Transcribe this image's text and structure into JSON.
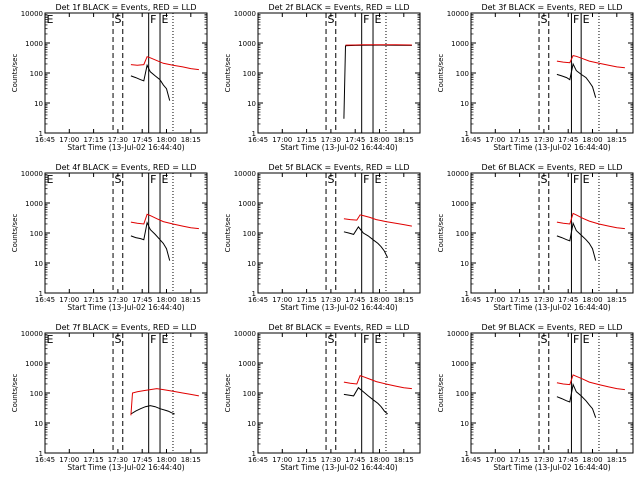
{
  "figure": {
    "x_labels": [
      "16:45",
      "17:00",
      "17:15",
      "17:30",
      "17:45",
      "18:00",
      "18:15"
    ],
    "x_title": "Start Time (13-Jul-02 16:44:40)",
    "y_title": "Counts/sec",
    "y_tick_labels": [
      "1",
      "10",
      "100",
      "1000",
      "10000"
    ],
    "colors": {
      "events": "#000000",
      "lld": "#e00000",
      "axes": "#000000"
    }
  },
  "chart_data": [
    {
      "type": "line",
      "title": "Det 1f BLACK = Events, RED = LLD",
      "xlabel": "Start Time (13-Jul-02 16:44:40)",
      "ylabel": "Counts/sec",
      "ylim": [
        1,
        10000
      ],
      "yscale": "log",
      "xlim": [
        "16:45",
        "18:25"
      ],
      "marker_lines": [
        {
          "label": "E",
          "x": "16:45",
          "style": "dotted"
        },
        {
          "label": "S",
          "x": "17:27",
          "style": "dashed"
        },
        {
          "label": "",
          "x": "17:33",
          "style": "dashed"
        },
        {
          "label": "F",
          "x": "17:49",
          "style": "solid"
        },
        {
          "label": "E",
          "x": "17:56",
          "style": "solid"
        },
        {
          "label": "",
          "x": "18:04",
          "style": "dotted"
        }
      ],
      "series": [
        {
          "name": "Events",
          "color": "#000000",
          "x": [
            "17:38",
            "17:41",
            "17:44",
            "17:46",
            "17:48",
            "17:50",
            "17:53",
            "17:56",
            "17:58",
            "18:00",
            "18:02"
          ],
          "y": [
            80,
            70,
            60,
            55,
            180,
            110,
            80,
            60,
            40,
            30,
            12
          ]
        },
        {
          "name": "LLD",
          "color": "#e00000",
          "x": [
            "17:38",
            "17:42",
            "17:46",
            "17:48",
            "17:50",
            "17:54",
            "17:58",
            "18:04",
            "18:10",
            "18:15",
            "18:20"
          ],
          "y": [
            190,
            180,
            190,
            350,
            320,
            260,
            210,
            180,
            160,
            140,
            130
          ]
        }
      ]
    },
    {
      "type": "line",
      "title": "Det 2f BLACK = Events, RED = LLD",
      "xlabel": "Start Time (13-Jul-02 16:44:40)",
      "ylabel": "Counts/sec",
      "ylim": [
        1,
        10000
      ],
      "yscale": "log",
      "xlim": [
        "16:45",
        "18:25"
      ],
      "marker_lines": [
        {
          "label": "S",
          "x": "17:27",
          "style": "dashed"
        },
        {
          "label": "",
          "x": "17:33",
          "style": "dashed"
        },
        {
          "label": "F",
          "x": "17:49",
          "style": "solid"
        },
        {
          "label": "E",
          "x": "17:56",
          "style": "solid"
        },
        {
          "label": "",
          "x": "18:04",
          "style": "dotted"
        }
      ],
      "series": [
        {
          "name": "Events",
          "color": "#000000",
          "x": [
            "17:38",
            "17:39",
            "17:40",
            "17:45",
            "17:50",
            "18:00",
            "18:10",
            "18:20"
          ],
          "y": [
            3,
            800,
            820,
            830,
            840,
            850,
            840,
            830
          ]
        },
        {
          "name": "LLD",
          "color": "#e00000",
          "x": [
            "17:39",
            "17:45",
            "17:50",
            "17:55",
            "18:00",
            "18:10",
            "18:20"
          ],
          "y": [
            850,
            860,
            870,
            880,
            880,
            870,
            860
          ]
        }
      ]
    },
    {
      "type": "line",
      "title": "Det 3f BLACK = Events, RED = LLD",
      "xlabel": "Start Time (13-Jul-02 16:44:40)",
      "ylabel": "Counts/sec",
      "ylim": [
        1,
        10000
      ],
      "yscale": "log",
      "xlim": [
        "16:45",
        "18:25"
      ],
      "marker_lines": [
        {
          "label": "S",
          "x": "17:27",
          "style": "dashed"
        },
        {
          "label": "",
          "x": "17:33",
          "style": "dashed"
        },
        {
          "label": "F",
          "x": "17:47",
          "style": "solid"
        },
        {
          "label": "E",
          "x": "17:53",
          "style": "solid"
        },
        {
          "label": "",
          "x": "18:04",
          "style": "dotted"
        }
      ],
      "series": [
        {
          "name": "Events",
          "color": "#000000",
          "x": [
            "17:38",
            "17:41",
            "17:44",
            "17:46",
            "17:48",
            "17:50",
            "17:53",
            "17:56",
            "17:58",
            "18:00",
            "18:02"
          ],
          "y": [
            90,
            80,
            70,
            60,
            200,
            120,
            90,
            70,
            50,
            35,
            15
          ]
        },
        {
          "name": "LLD",
          "color": "#e00000",
          "x": [
            "17:38",
            "17:42",
            "17:46",
            "17:48",
            "17:50",
            "17:54",
            "17:58",
            "18:04",
            "18:10",
            "18:15",
            "18:20"
          ],
          "y": [
            250,
            230,
            220,
            380,
            360,
            300,
            250,
            210,
            180,
            160,
            150
          ]
        }
      ]
    },
    {
      "type": "line",
      "title": "Det 4f BLACK = Events, RED = LLD",
      "xlabel": "Start Time (13-Jul-02 16:44:40)",
      "ylabel": "Counts/sec",
      "ylim": [
        1,
        10000
      ],
      "yscale": "log",
      "xlim": [
        "16:45",
        "18:25"
      ],
      "marker_lines": [
        {
          "label": "E",
          "x": "16:45",
          "style": "dotted"
        },
        {
          "label": "S",
          "x": "17:27",
          "style": "dashed"
        },
        {
          "label": "",
          "x": "17:33",
          "style": "dashed"
        },
        {
          "label": "F",
          "x": "17:49",
          "style": "solid"
        },
        {
          "label": "E",
          "x": "17:56",
          "style": "solid"
        },
        {
          "label": "",
          "x": "18:04",
          "style": "dotted"
        }
      ],
      "series": [
        {
          "name": "Events",
          "color": "#000000",
          "x": [
            "17:38",
            "17:41",
            "17:44",
            "17:46",
            "17:48",
            "17:50",
            "17:53",
            "17:56",
            "17:58",
            "18:00",
            "18:02"
          ],
          "y": [
            80,
            70,
            65,
            60,
            220,
            130,
            90,
            60,
            45,
            30,
            12
          ]
        },
        {
          "name": "LLD",
          "color": "#e00000",
          "x": [
            "17:38",
            "17:42",
            "17:46",
            "17:48",
            "17:50",
            "17:54",
            "17:58",
            "18:04",
            "18:10",
            "18:15",
            "18:20"
          ],
          "y": [
            230,
            210,
            200,
            420,
            380,
            300,
            240,
            200,
            170,
            150,
            140
          ]
        }
      ]
    },
    {
      "type": "line",
      "title": "Det 5f BLACK = Events, RED = LLD",
      "xlabel": "Start Time (13-Jul-02 16:44:40)",
      "ylabel": "Counts/sec",
      "ylim": [
        1,
        10000
      ],
      "yscale": "log",
      "xlim": [
        "16:45",
        "18:25"
      ],
      "marker_lines": [
        {
          "label": "S",
          "x": "17:27",
          "style": "dashed"
        },
        {
          "label": "",
          "x": "17:33",
          "style": "dashed"
        },
        {
          "label": "F",
          "x": "17:49",
          "style": "solid"
        },
        {
          "label": "E",
          "x": "17:56",
          "style": "solid"
        },
        {
          "label": "",
          "x": "18:04",
          "style": "dotted"
        }
      ],
      "series": [
        {
          "name": "Events",
          "color": "#000000",
          "x": [
            "17:38",
            "17:41",
            "17:44",
            "17:47",
            "17:50",
            "17:53",
            "17:56",
            "17:59",
            "18:01",
            "18:03",
            "18:05"
          ],
          "y": [
            110,
            100,
            90,
            160,
            100,
            80,
            60,
            45,
            35,
            25,
            15
          ]
        },
        {
          "name": "LLD",
          "color": "#e00000",
          "x": [
            "17:38",
            "17:42",
            "17:46",
            "17:48",
            "17:50",
            "17:54",
            "17:58",
            "18:04",
            "18:10",
            "18:15",
            "18:20"
          ],
          "y": [
            300,
            280,
            270,
            400,
            380,
            330,
            280,
            240,
            210,
            190,
            170
          ]
        }
      ]
    },
    {
      "type": "line",
      "title": "Det 6f BLACK = Events, RED = LLD",
      "xlabel": "Start Time (13-Jul-02 16:44:40)",
      "ylabel": "Counts/sec",
      "ylim": [
        1,
        10000
      ],
      "yscale": "log",
      "xlim": [
        "16:45",
        "18:25"
      ],
      "marker_lines": [
        {
          "label": "S",
          "x": "17:27",
          "style": "dashed"
        },
        {
          "label": "",
          "x": "17:33",
          "style": "dashed"
        },
        {
          "label": "F",
          "x": "17:47",
          "style": "solid"
        },
        {
          "label": "E",
          "x": "17:53",
          "style": "solid"
        },
        {
          "label": "",
          "x": "18:04",
          "style": "dotted"
        }
      ],
      "series": [
        {
          "name": "Events",
          "color": "#000000",
          "x": [
            "17:38",
            "17:41",
            "17:44",
            "17:46",
            "17:48",
            "17:50",
            "17:53",
            "17:56",
            "17:58",
            "18:00",
            "18:02"
          ],
          "y": [
            80,
            70,
            60,
            55,
            210,
            120,
            85,
            60,
            45,
            30,
            12
          ]
        },
        {
          "name": "LLD",
          "color": "#e00000",
          "x": [
            "17:38",
            "17:42",
            "17:46",
            "17:48",
            "17:50",
            "17:54",
            "17:58",
            "18:04",
            "18:10",
            "18:15",
            "18:20"
          ],
          "y": [
            230,
            210,
            200,
            450,
            400,
            310,
            250,
            200,
            170,
            150,
            140
          ]
        }
      ]
    },
    {
      "type": "line",
      "title": "Det 7f BLACK = Events, RED = LLD",
      "xlabel": "Start Time (13-Jul-02 16:44:40)",
      "ylabel": "Counts/sec",
      "ylim": [
        1,
        10000
      ],
      "yscale": "log",
      "xlim": [
        "16:45",
        "18:25"
      ],
      "marker_lines": [
        {
          "label": "E",
          "x": "16:45",
          "style": "dotted"
        },
        {
          "label": "S",
          "x": "17:27",
          "style": "dashed"
        },
        {
          "label": "",
          "x": "17:33",
          "style": "dashed"
        },
        {
          "label": "F",
          "x": "17:49",
          "style": "solid"
        },
        {
          "label": "E",
          "x": "17:56",
          "style": "solid"
        },
        {
          "label": "",
          "x": "18:04",
          "style": "dotted"
        }
      ],
      "series": [
        {
          "name": "Events",
          "color": "#000000",
          "x": [
            "17:38",
            "17:41",
            "17:44",
            "17:47",
            "17:50",
            "17:53",
            "17:56",
            "17:59",
            "18:01",
            "18:03",
            "18:05"
          ],
          "y": [
            20,
            25,
            30,
            35,
            38,
            35,
            30,
            27,
            25,
            22,
            20
          ]
        },
        {
          "name": "LLD",
          "color": "#e00000",
          "x": [
            "17:38",
            "17:39",
            "17:42",
            "17:46",
            "17:50",
            "17:54",
            "17:58",
            "18:04",
            "18:10",
            "18:15",
            "18:20"
          ],
          "y": [
            18,
            100,
            110,
            120,
            130,
            140,
            130,
            115,
            100,
            90,
            80
          ]
        }
      ]
    },
    {
      "type": "line",
      "title": "Det 8f BLACK = Events, RED = LLD",
      "xlabel": "Start Time (13-Jul-02 16:44:40)",
      "ylabel": "Counts/sec",
      "ylim": [
        1,
        10000
      ],
      "yscale": "log",
      "xlim": [
        "16:45",
        "18:25"
      ],
      "marker_lines": [
        {
          "label": "S",
          "x": "17:27",
          "style": "dashed"
        },
        {
          "label": "",
          "x": "17:33",
          "style": "dashed"
        },
        {
          "label": "F",
          "x": "17:49",
          "style": "solid"
        },
        {
          "label": "E",
          "x": "17:56",
          "style": "solid"
        },
        {
          "label": "",
          "x": "18:04",
          "style": "dotted"
        }
      ],
      "series": [
        {
          "name": "Events",
          "color": "#000000",
          "x": [
            "17:38",
            "17:41",
            "17:44",
            "17:47",
            "17:50",
            "17:53",
            "17:56",
            "17:59",
            "18:01",
            "18:03",
            "18:05"
          ],
          "y": [
            90,
            85,
            80,
            150,
            110,
            80,
            60,
            45,
            35,
            25,
            20
          ]
        },
        {
          "name": "LLD",
          "color": "#e00000",
          "x": [
            "17:38",
            "17:42",
            "17:46",
            "17:48",
            "17:50",
            "17:54",
            "17:58",
            "18:04",
            "18:10",
            "18:15",
            "18:20"
          ],
          "y": [
            230,
            210,
            200,
            380,
            350,
            290,
            240,
            200,
            170,
            150,
            140
          ]
        }
      ]
    },
    {
      "type": "line",
      "title": "Det 9f BLACK = Events, RED = LLD",
      "xlabel": "Start Time (13-Jul-02 16:44:40)",
      "ylabel": "Counts/sec",
      "ylim": [
        1,
        10000
      ],
      "yscale": "log",
      "xlim": [
        "16:45",
        "18:25"
      ],
      "marker_lines": [
        {
          "label": "S",
          "x": "17:27",
          "style": "dashed"
        },
        {
          "label": "",
          "x": "17:33",
          "style": "dashed"
        },
        {
          "label": "F",
          "x": "17:47",
          "style": "solid"
        },
        {
          "label": "E",
          "x": "17:53",
          "style": "solid"
        },
        {
          "label": "",
          "x": "18:04",
          "style": "dotted"
        }
      ],
      "series": [
        {
          "name": "Events",
          "color": "#000000",
          "x": [
            "17:38",
            "17:41",
            "17:44",
            "17:46",
            "17:48",
            "17:50",
            "17:53",
            "17:56",
            "17:58",
            "18:00",
            "18:02"
          ],
          "y": [
            75,
            65,
            55,
            50,
            190,
            110,
            80,
            55,
            40,
            30,
            15
          ]
        },
        {
          "name": "LLD",
          "color": "#e00000",
          "x": [
            "17:38",
            "17:42",
            "17:46",
            "17:48",
            "17:50",
            "17:54",
            "17:58",
            "18:04",
            "18:10",
            "18:15",
            "18:20"
          ],
          "y": [
            220,
            200,
            190,
            400,
            360,
            290,
            230,
            190,
            160,
            140,
            130
          ]
        }
      ]
    }
  ]
}
